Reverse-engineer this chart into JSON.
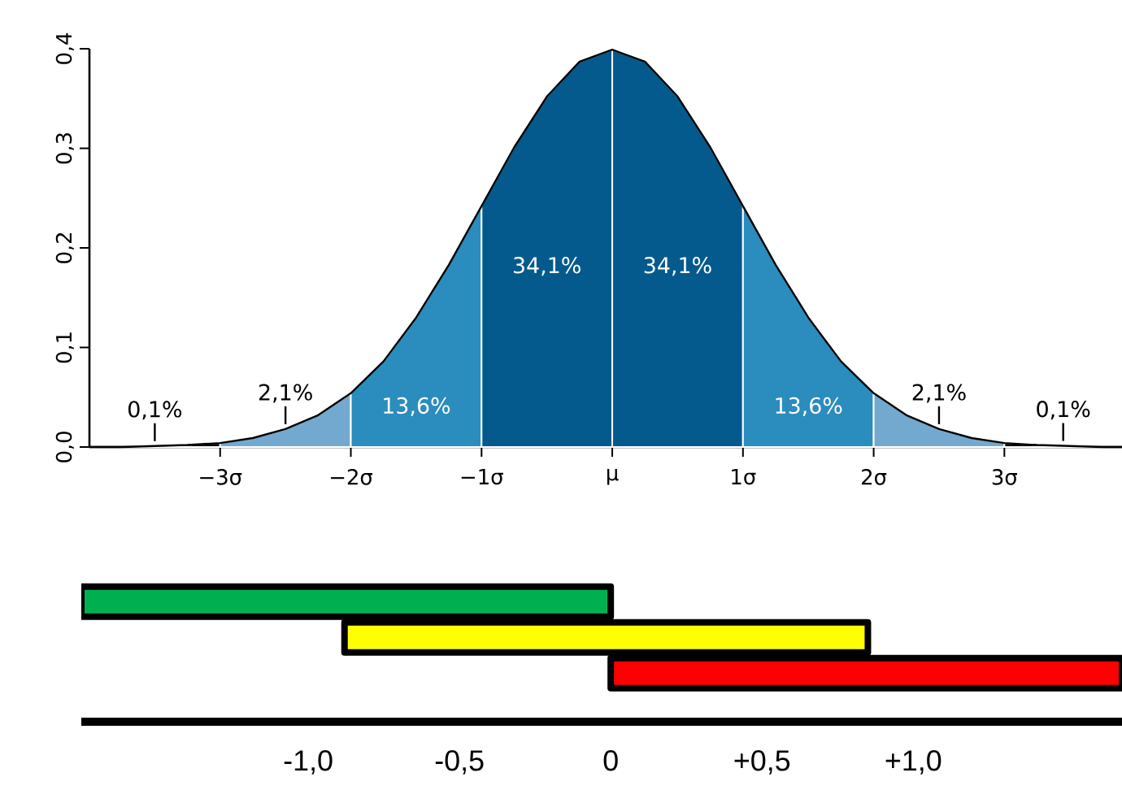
{
  "chart_data": [
    {
      "type": "area",
      "xlim": [
        -4,
        3.9
      ],
      "ylim": [
        0,
        0.4
      ],
      "xticks": [
        {
          "value": -3,
          "label": "−3σ"
        },
        {
          "value": -2,
          "label": "−2σ"
        },
        {
          "value": -1,
          "label": "−1σ"
        },
        {
          "value": 0,
          "label": "μ"
        },
        {
          "value": 1,
          "label": "1σ"
        },
        {
          "value": 2,
          "label": "2σ"
        },
        {
          "value": 3,
          "label": "3σ"
        }
      ],
      "yticks": [
        {
          "value": 0,
          "label": "0,0"
        },
        {
          "value": 0.1,
          "label": "0,1"
        },
        {
          "value": 0.2,
          "label": "0,2"
        },
        {
          "value": 0.3,
          "label": "0,3"
        },
        {
          "value": 0.4,
          "label": "0,4"
        }
      ],
      "series": [
        {
          "type": "area",
          "color": "#000000",
          "x": [
            -4,
            -3.75,
            -3.5,
            -3.25,
            -3
          ],
          "values": [
            0.0,
            0.0,
            0.001,
            0.002,
            0.004
          ]
        },
        {
          "type": "area",
          "color": "#74a9cf",
          "x": [
            -3,
            -2.75,
            -2.5,
            -2.25,
            -2
          ],
          "values": [
            0.004,
            0.009,
            0.018,
            0.032,
            0.054
          ]
        },
        {
          "type": "area",
          "color": "#2b8cbe",
          "x": [
            -2,
            -1.75,
            -1.5,
            -1.25,
            -1
          ],
          "values": [
            0.054,
            0.086,
            0.13,
            0.183,
            0.242
          ]
        },
        {
          "type": "area",
          "color": "#045a8d",
          "x": [
            -1,
            -0.75,
            -0.5,
            -0.25,
            0
          ],
          "values": [
            0.242,
            0.301,
            0.352,
            0.387,
            0.399
          ]
        },
        {
          "type": "area",
          "color": "#045a8d",
          "x": [
            0,
            0.25,
            0.5,
            0.75,
            1
          ],
          "values": [
            0.399,
            0.387,
            0.352,
            0.301,
            0.242
          ]
        },
        {
          "type": "area",
          "color": "#2b8cbe",
          "x": [
            1,
            1.25,
            1.5,
            1.75,
            2
          ],
          "values": [
            0.242,
            0.183,
            0.13,
            0.086,
            0.054
          ]
        },
        {
          "type": "area",
          "color": "#74a9cf",
          "x": [
            2,
            2.25,
            2.5,
            2.75,
            3
          ],
          "values": [
            0.054,
            0.032,
            0.018,
            0.009,
            0.004
          ]
        },
        {
          "type": "area",
          "color": "#000000",
          "x": [
            3,
            3.25,
            3.5,
            3.75,
            3.9
          ],
          "values": [
            0.004,
            0.002,
            0.001,
            0.0,
            0.0
          ]
        },
        {
          "type": "line",
          "color": "#000000",
          "x": [
            -4,
            -3.75,
            -3.5,
            -3.25,
            -3,
            -2.75,
            -2.5,
            -2.25,
            -2,
            -1.75,
            -1.5,
            -1.25,
            -1,
            -0.75,
            -0.5,
            -0.25,
            0,
            0.25,
            0.5,
            0.75,
            1,
            1.25,
            1.5,
            1.75,
            2,
            2.25,
            2.5,
            2.75,
            3,
            3.25,
            3.5,
            3.75,
            3.9
          ],
          "values": [
            0.0,
            0.0,
            0.001,
            0.002,
            0.004,
            0.009,
            0.018,
            0.032,
            0.054,
            0.086,
            0.13,
            0.183,
            0.242,
            0.301,
            0.352,
            0.387,
            0.399,
            0.387,
            0.352,
            0.301,
            0.242,
            0.183,
            0.13,
            0.086,
            0.054,
            0.032,
            0.018,
            0.009,
            0.004,
            0.002,
            0.001,
            0.0,
            0.0
          ]
        }
      ],
      "annotations": [
        "0,1%",
        "2,1%",
        "13,6%",
        "34,1%",
        "34,1%",
        "13,6%",
        "2,1%",
        "0,1%"
      ]
    },
    {
      "type": "bar",
      "orientation": "horizontal",
      "categories": [
        null,
        null,
        null
      ],
      "xlim": [
        -1.75,
        1.69
      ],
      "xticks": [
        {
          "value": -1,
          "label": "-1,0"
        },
        {
          "value": -0.5,
          "label": "-0,5"
        },
        0,
        {
          "value": 0.5,
          "label": "+0,5"
        },
        {
          "value": 1,
          "label": "+1,0"
        }
      ],
      "tick_labels": "x",
      "base": [
        -1.75,
        -0.88,
        0
      ],
      "values": [
        1.75,
        1.73,
        1.69
      ],
      "colors": [
        "#00b050",
        "#ffff00",
        "#ff0000"
      ]
    }
  ]
}
